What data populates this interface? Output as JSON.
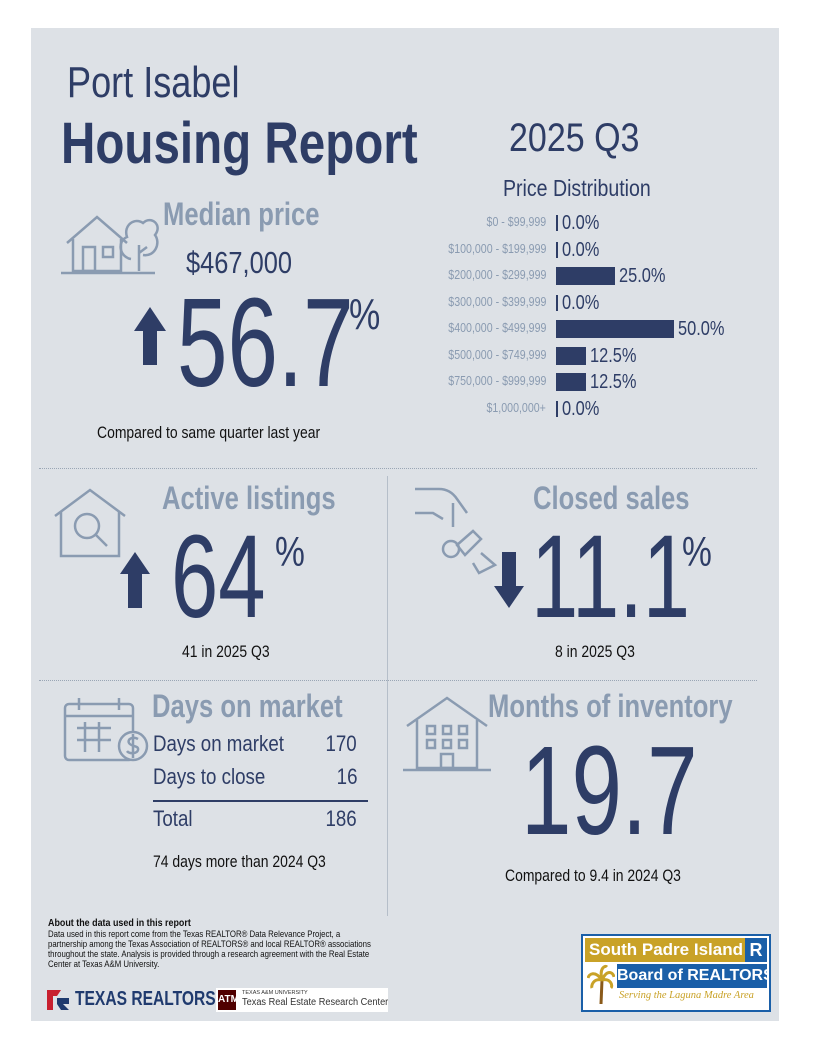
{
  "header": {
    "city": "Port Isabel",
    "title": "Housing Report",
    "quarter": "2025 Q3"
  },
  "median_price": {
    "label": "Median price",
    "value": "$467,000",
    "change": "56.7",
    "percent_sign": "%",
    "direction": "up",
    "note": "Compared to same quarter last year"
  },
  "price_distribution": {
    "title": "Price Distribution",
    "rows": [
      {
        "range": "$0 - $99,999",
        "pct_label": "0.0%",
        "pct": 0.0
      },
      {
        "range": "$100,000 - $199,999",
        "pct_label": "0.0%",
        "pct": 0.0
      },
      {
        "range": "$200,000 - $299,999",
        "pct_label": "25.0%",
        "pct": 25.0
      },
      {
        "range": "$300,000 - $399,999",
        "pct_label": "0.0%",
        "pct": 0.0
      },
      {
        "range": "$400,000 - $499,999",
        "pct_label": "50.0%",
        "pct": 50.0
      },
      {
        "range": "$500,000 - $749,999",
        "pct_label": "12.5%",
        "pct": 12.5
      },
      {
        "range": "$750,000 - $999,999",
        "pct_label": "12.5%",
        "pct": 12.5
      },
      {
        "range": "$1,000,000+",
        "pct_label": "0.0%",
        "pct": 0.0
      }
    ]
  },
  "active_listings": {
    "label": "Active listings",
    "change": "64",
    "percent_sign": "%",
    "direction": "up",
    "note": "41 in 2025 Q3"
  },
  "closed_sales": {
    "label": "Closed sales",
    "change": "11.1",
    "percent_sign": "%",
    "direction": "down",
    "note": "8 in 2025 Q3"
  },
  "days_on_market": {
    "label": "Days on market",
    "rows": [
      {
        "name": "Days on market",
        "value": "170"
      },
      {
        "name": "Days to close",
        "value": "16"
      }
    ],
    "total_label": "Total",
    "total_value": "186",
    "note": "74 days more than 2024 Q3"
  },
  "months_inventory": {
    "label": "Months of inventory",
    "value": "19.7",
    "note": "Compared to 9.4 in 2024 Q3"
  },
  "about": {
    "heading": "About the data used in this report",
    "body": "Data used in this report come from the Texas REALTOR® Data Relevance Project, a partnership among the Texas Association of REALTORS® and local REALTOR® associations throughout the state. Analysis is provided through a research agreement with the Real Estate Center at Texas A&M University."
  },
  "logos": {
    "texas_realtors": "TEXAS REALTORS",
    "tamu_small": "TEXAS A&M UNIVERSITY",
    "tamu_center": "Texas Real Estate Research Center",
    "spi_line1": "South Padre Island",
    "spi_r": "R",
    "spi_line2": "Board of REALTORS",
    "spi_tagline": "Serving the Laguna Madre Area"
  },
  "colors": {
    "navy": "#2e3d66",
    "grey": "#8a9bb1",
    "card": "#dde1e6",
    "spi_gold": "#c9a227",
    "spi_blue": "#1a5fa8"
  }
}
